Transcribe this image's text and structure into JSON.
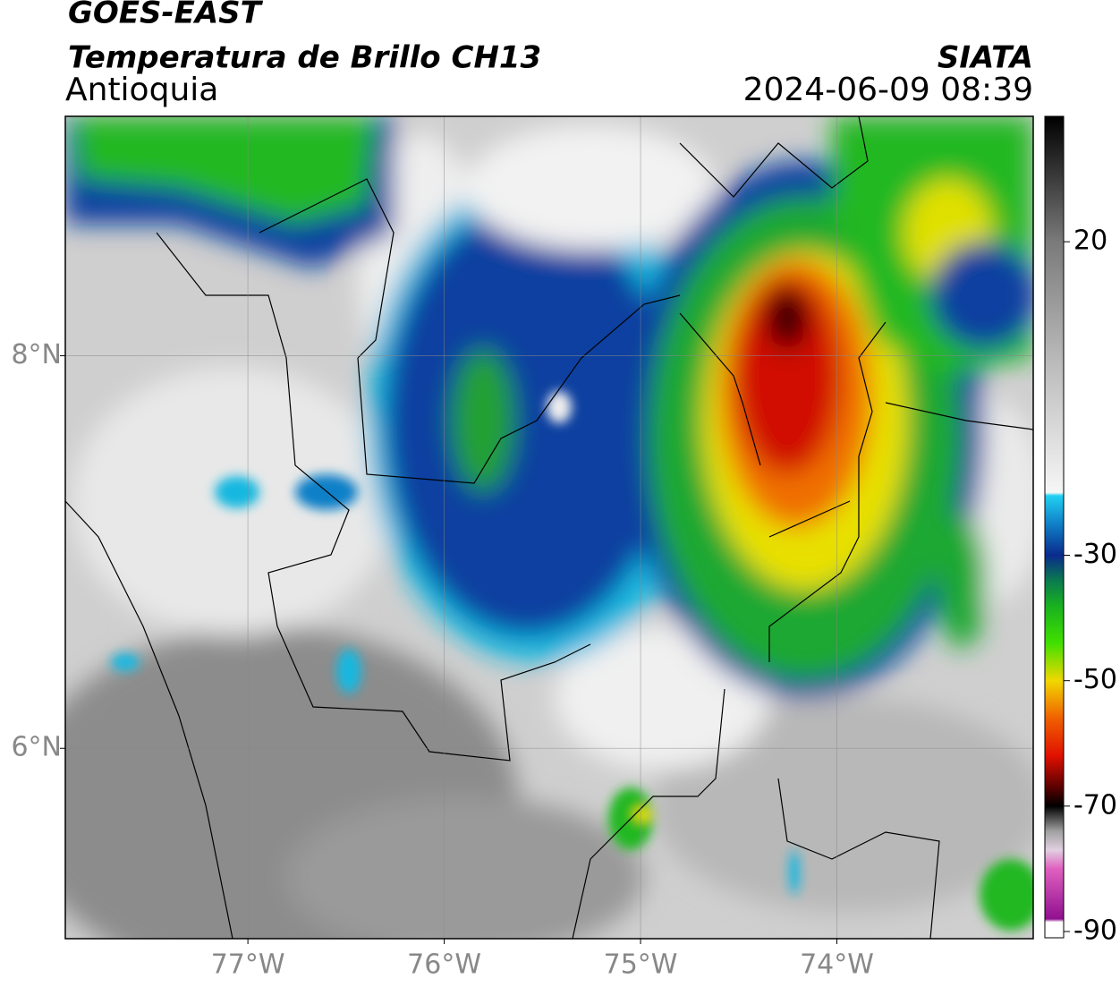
{
  "header": {
    "title": "GOES-EAST",
    "subtitle": "Temperatura de Brillo CH13",
    "region": "Antioquia",
    "source": "SIATA",
    "datetime": "2024-06-09 08:39"
  },
  "map": {
    "xlim": [
      -77.93,
      -73.0
    ],
    "ylim": [
      5.03,
      9.22
    ],
    "xticks": [
      {
        "value": -77,
        "label": "77°W"
      },
      {
        "value": -76,
        "label": "76°W"
      },
      {
        "value": -75,
        "label": "75°W"
      },
      {
        "value": -74,
        "label": "74°W"
      }
    ],
    "yticks": [
      {
        "value": 8,
        "label": "8°N"
      },
      {
        "value": 6,
        "label": "6°N"
      }
    ],
    "grid": true,
    "colorbar": {
      "clim": [
        -91,
        40
      ],
      "ticks": [
        20,
        -30,
        -50,
        -70,
        -90
      ],
      "colormap": [
        [
          40,
          "#000000"
        ],
        [
          30,
          "#3c3c3c"
        ],
        [
          20,
          "#7a7a7a"
        ],
        [
          0,
          "#bdbdbd"
        ],
        [
          -20,
          "#f6f6f6"
        ],
        [
          -20.5,
          "#22d0f2"
        ],
        [
          -25,
          "#1080c8"
        ],
        [
          -30,
          "#0a2a8c"
        ],
        [
          -34,
          "#0a7a50"
        ],
        [
          -38,
          "#18b020"
        ],
        [
          -44,
          "#40e000"
        ],
        [
          -50,
          "#f0d800"
        ],
        [
          -56,
          "#f06000"
        ],
        [
          -62,
          "#e01000"
        ],
        [
          -67,
          "#5a0000"
        ],
        [
          -70,
          "#000000"
        ],
        [
          -74,
          "#a0a0a0"
        ],
        [
          -77,
          "#e0d0e0"
        ],
        [
          -80,
          "#e060c0"
        ],
        [
          -88,
          "#901090"
        ],
        [
          -88.5,
          "#ffffff"
        ],
        [
          -91,
          "#ffffff"
        ]
      ]
    }
  }
}
